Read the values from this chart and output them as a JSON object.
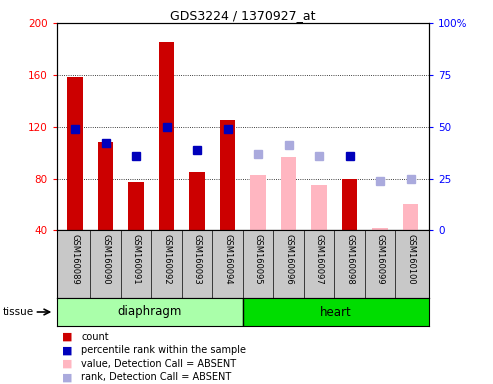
{
  "title": "GDS3224 / 1370927_at",
  "samples": [
    "GSM160089",
    "GSM160090",
    "GSM160091",
    "GSM160092",
    "GSM160093",
    "GSM160094",
    "GSM160095",
    "GSM160096",
    "GSM160097",
    "GSM160098",
    "GSM160099",
    "GSM160100"
  ],
  "count_values": [
    158,
    108,
    77,
    185,
    85,
    125,
    null,
    null,
    null,
    80,
    null,
    null
  ],
  "count_absent_values": [
    null,
    null,
    null,
    null,
    null,
    null,
    83,
    97,
    75,
    null,
    42,
    60
  ],
  "percentile_present": [
    49,
    42,
    36,
    50,
    39,
    49,
    null,
    null,
    null,
    36,
    null,
    null
  ],
  "percentile_absent": [
    null,
    null,
    null,
    null,
    null,
    null,
    37,
    41,
    36,
    null,
    24,
    25
  ],
  "ylim_left": [
    40,
    200
  ],
  "ylim_right": [
    0,
    100
  ],
  "yticks_left": [
    40,
    80,
    120,
    160,
    200
  ],
  "yticks_right": [
    0,
    25,
    50,
    75,
    100
  ],
  "bar_color_present": "#CC0000",
  "bar_color_absent": "#FFB6C1",
  "dot_color_present": "#0000BB",
  "dot_color_absent": "#AAAADD",
  "bar_width": 0.5,
  "dot_size": 6,
  "diaphragm_color": "#AAFFAA",
  "heart_color": "#00DD00",
  "xlabel_bg": "#C8C8C8"
}
